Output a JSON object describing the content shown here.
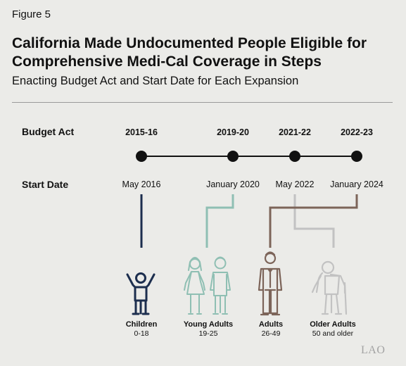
{
  "figure_label": "Figure 5",
  "title_line1": "California Made Undocumented People Eligible for",
  "title_line2": "Comprehensive Medi-Cal Coverage in Steps",
  "subtitle": "Enacting Budget Act and Start Date for Each Expansion",
  "row_labels": {
    "budget_act": "Budget Act",
    "start_date": "Start Date"
  },
  "timeline": [
    {
      "budget_act": "2015-16",
      "start_date": "May 2016"
    },
    {
      "budget_act": "2019-20",
      "start_date": "January 2020"
    },
    {
      "budget_act": "2021-22",
      "start_date": "May 2022"
    },
    {
      "budget_act": "2022-23",
      "start_date": "January 2024"
    }
  ],
  "groups": [
    {
      "name": "Children",
      "ages": "0-18",
      "color": "#1c2e4e",
      "icon": "child-icon"
    },
    {
      "name": "Young Adults",
      "ages": "19-25",
      "color": "#8fbfb3",
      "icon": "young-adults-icon"
    },
    {
      "name": "Adults",
      "ages": "26-49",
      "color": "#7c6459",
      "icon": "adult-icon"
    },
    {
      "name": "Older Adults",
      "ages": "50 and older",
      "color": "#c2c2c2",
      "icon": "older-adult-icon"
    }
  ],
  "footer_logo": "LAO"
}
